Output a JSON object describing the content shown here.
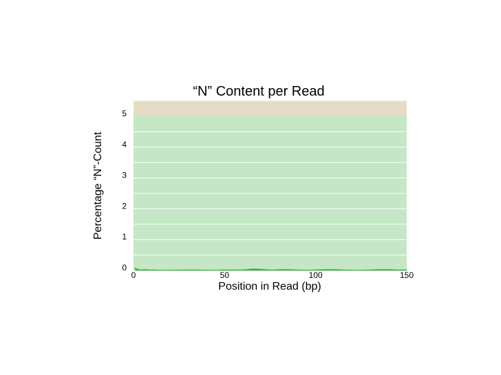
{
  "chart_data": {
    "type": "area",
    "title": "“N” Content per Read",
    "xlabel": "Position in Read (bp)",
    "ylabel": "Percentage “N”-Count",
    "xlim": [
      0,
      150
    ],
    "ylim": [
      0,
      5
    ],
    "x_ticks": [
      {
        "value": 0,
        "label": "0"
      },
      {
        "value": 50,
        "label": "50"
      },
      {
        "value": 100,
        "label": "100"
      },
      {
        "value": 150,
        "label": "150"
      }
    ],
    "y_ticks": [
      {
        "value": 0,
        "label": "0"
      },
      {
        "value": 1,
        "label": "1"
      },
      {
        "value": 2,
        "label": "2"
      },
      {
        "value": 3,
        "label": "3"
      },
      {
        "value": 4,
        "label": "4"
      },
      {
        "value": 5,
        "label": "5"
      }
    ],
    "grid": true,
    "bands": [
      {
        "from": 0,
        "to": 5,
        "color": "#c5e7c5"
      },
      {
        "from": 5,
        "to": 5.5,
        "color": "#e6dcc5"
      }
    ],
    "series": [
      {
        "color": "#3cb043",
        "x": [
          1,
          2,
          3,
          4,
          6,
          8,
          10,
          12,
          15,
          20,
          30,
          35,
          40,
          45,
          50,
          55,
          60,
          62,
          65,
          67,
          70,
          72,
          75,
          78,
          80,
          85,
          90,
          95,
          100,
          105,
          110,
          115,
          120,
          125,
          130,
          135,
          140,
          145,
          150
        ],
        "values": [
          0.08,
          0.05,
          0.03,
          0.02,
          0.03,
          0.02,
          0.02,
          0.02,
          0.01,
          0.01,
          0.02,
          0.02,
          0.01,
          0.01,
          0.02,
          0.02,
          0.02,
          0.03,
          0.05,
          0.05,
          0.04,
          0.03,
          0.02,
          0.02,
          0.03,
          0.03,
          0.02,
          0.01,
          0.02,
          0.03,
          0.03,
          0.02,
          0.01,
          0.01,
          0.02,
          0.03,
          0.03,
          0.02,
          0.02
        ]
      }
    ]
  }
}
